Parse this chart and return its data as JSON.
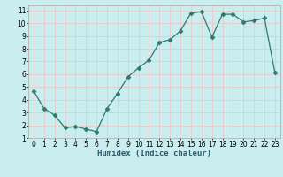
{
  "x": [
    0,
    1,
    2,
    3,
    4,
    5,
    6,
    7,
    8,
    9,
    10,
    11,
    12,
    13,
    14,
    15,
    16,
    17,
    18,
    19,
    20,
    21,
    22,
    23
  ],
  "y": [
    4.7,
    3.3,
    2.8,
    1.8,
    1.9,
    1.7,
    1.5,
    3.3,
    4.5,
    5.8,
    6.5,
    7.1,
    8.5,
    8.7,
    9.4,
    10.8,
    10.9,
    8.9,
    10.7,
    10.7,
    10.1,
    10.2,
    10.4,
    6.1
  ],
  "line_color": "#2d7a6e",
  "marker": "D",
  "marker_size": 2.5,
  "background_color": "#caeef0",
  "grid_color": "#e8c8c8",
  "xlabel": "Humidex (Indice chaleur)",
  "xlim": [
    -0.5,
    23.5
  ],
  "ylim": [
    1,
    11.4
  ],
  "yticks": [
    1,
    2,
    3,
    4,
    5,
    6,
    7,
    8,
    9,
    10,
    11
  ],
  "xticks": [
    0,
    1,
    2,
    3,
    4,
    5,
    6,
    7,
    8,
    9,
    10,
    11,
    12,
    13,
    14,
    15,
    16,
    17,
    18,
    19,
    20,
    21,
    22,
    23
  ],
  "tick_fontsize": 5.5,
  "xlabel_fontsize": 6.5
}
